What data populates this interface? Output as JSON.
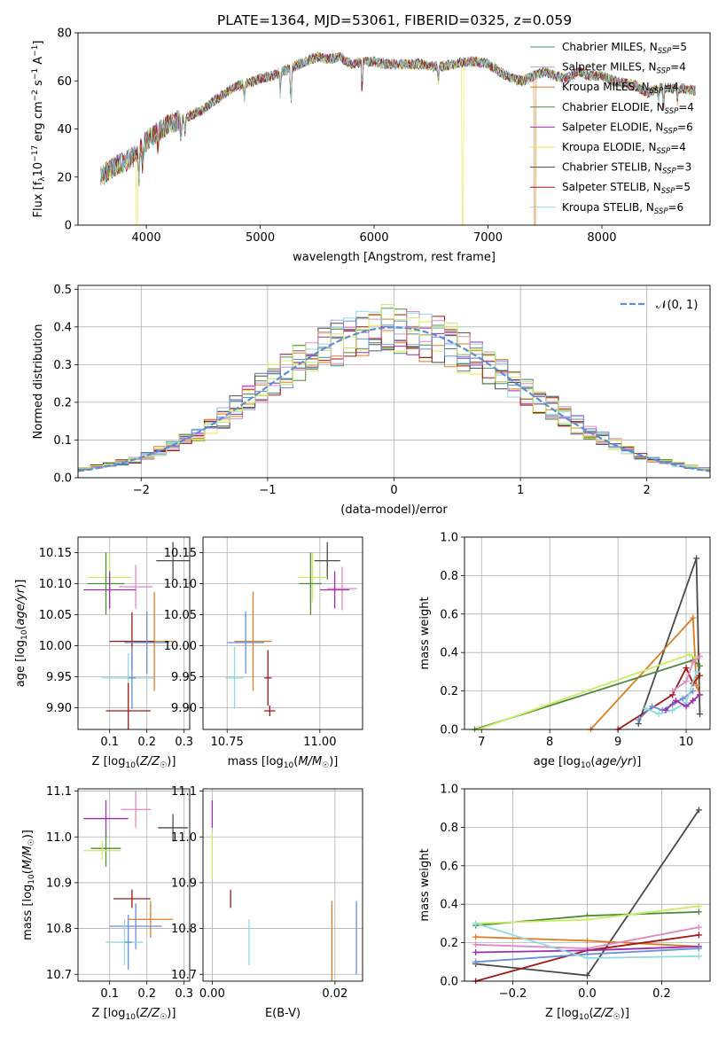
{
  "figure": {
    "title": "PLATE=1364, MJD=53061, FIBERID=0325, z=0.059"
  },
  "colors": {
    "chabrier_miles": "#4a8c7a",
    "salpeter_miles": "#b8a0d8",
    "kroupa_miles": "#e07b1f",
    "chabrier_elodie": "#4f8a3a",
    "salpeter_elodie": "#9b2fae",
    "kroupa_elodie": "#e8e64a",
    "chabrier_stelib": "#4a4a4a",
    "salpeter_stelib": "#a01818",
    "kroupa_stelib": "#8edce0",
    "model_c2": "#e088c0",
    "model_c3": "#6a8fd8",
    "model_c4": "#c8ee60",
    "normal_curve": "#5b8ed6"
  },
  "chart_data": [
    {
      "id": "spectrum",
      "type": "line",
      "title": "PLATE=1364, MJD=53061, FIBERID=0325, z=0.059",
      "xlabel": "wavelength [Angstrom, rest frame]",
      "ylabel": "Flux [f_λ10^-17 erg cm^-2 s^-1 A^-1]",
      "xlim": [
        3400,
        8950
      ],
      "ylim": [
        0,
        80
      ],
      "xticks": [
        4000,
        5000,
        6000,
        7000,
        8000
      ],
      "yticks": [
        0,
        20,
        40,
        60,
        80
      ],
      "legend": "top-right",
      "legend_entries": [
        {
          "name": "Chabrier MILES, N_SSP=5",
          "base": "Chabrier MILES, N",
          "sub": "SSP",
          "tail": "=5",
          "color": "#4a8c7a"
        },
        {
          "name": "Salpeter MILES, N_SSP=4",
          "base": "Salpeter MILES, N",
          "sub": "SSP",
          "tail": "=4",
          "color": "#b8a0d8"
        },
        {
          "name": "Kroupa MILES, N_SSP=4",
          "base": "Kroupa MILES, N",
          "sub": "SSP",
          "tail": "=4",
          "color": "#e07b1f"
        },
        {
          "name": "Chabrier ELODIE, N_SSP=4",
          "base": "Chabrier ELODIE, N",
          "sub": "SSP",
          "tail": "=4",
          "color": "#4f8a3a"
        },
        {
          "name": "Salpeter ELODIE, N_SSP=6",
          "base": "Salpeter ELODIE, N",
          "sub": "SSP",
          "tail": "=6",
          "color": "#9b2fae"
        },
        {
          "name": "Kroupa ELODIE, N_SSP=4",
          "base": "Kroupa ELODIE, N",
          "sub": "SSP",
          "tail": "=4",
          "color": "#e8e64a"
        },
        {
          "name": "Chabrier STELIB, N_SSP=3",
          "base": "Chabrier STELIB, N",
          "sub": "SSP",
          "tail": "=3",
          "color": "#4a4a4a"
        },
        {
          "name": "Salpeter STELIB, N_SSP=5",
          "base": "Salpeter STELIB, N",
          "sub": "SSP",
          "tail": "=5",
          "color": "#a01818"
        },
        {
          "name": "Kroupa STELIB, N_SSP=6",
          "base": "Kroupa STELIB, N",
          "sub": "SSP",
          "tail": "=6",
          "color": "#8edce0"
        }
      ],
      "continuum": {
        "x": [
          3600,
          3700,
          3800,
          3900,
          4000,
          4100,
          4200,
          4300,
          4400,
          4500,
          4600,
          4700,
          4800,
          4900,
          5000,
          5100,
          5200,
          5300,
          5400,
          5500,
          5600,
          5700,
          5800,
          5900,
          6000,
          6100,
          6200,
          6300,
          6400,
          6500,
          6600,
          6700,
          6800,
          6900,
          7000,
          7100,
          7200,
          7300,
          7400,
          7500,
          7600,
          7700,
          7800,
          7900,
          8000,
          8100,
          8200,
          8300,
          8400,
          8500,
          8600,
          8700,
          8800
        ],
        "y": [
          20,
          24,
          26,
          29,
          35,
          39,
          42,
          44,
          46,
          48,
          52,
          55,
          58,
          59,
          61,
          62,
          64,
          66,
          68,
          70,
          69,
          70,
          67,
          68,
          68,
          67,
          67,
          67,
          67,
          66,
          66,
          67,
          68,
          68,
          67,
          64,
          61,
          60,
          62,
          64,
          62,
          61,
          64,
          62,
          62,
          60,
          59,
          58,
          55,
          57,
          57,
          57,
          56
        ]
      },
      "absorption_lines": [
        {
          "x": 3934,
          "depth": 14
        },
        {
          "x": 3969,
          "depth": 10
        },
        {
          "x": 4102,
          "depth": 6
        },
        {
          "x": 4305,
          "depth": 9
        },
        {
          "x": 4340,
          "depth": 6
        },
        {
          "x": 4861,
          "depth": 7
        },
        {
          "x": 5176,
          "depth": 9
        },
        {
          "x": 5270,
          "depth": 16
        },
        {
          "x": 5895,
          "depth": 12
        },
        {
          "x": 6563,
          "depth": 6
        },
        {
          "x": 8498,
          "depth": 5
        },
        {
          "x": 8542,
          "depth": 7
        },
        {
          "x": 8662,
          "depth": 6
        }
      ],
      "dropouts": [
        {
          "x": 3920,
          "color": "#e8e64a"
        },
        {
          "x": 6780,
          "color": "#e8e64a"
        },
        {
          "x": 7410,
          "color": "#e07b1f"
        }
      ]
    },
    {
      "id": "residual_hist",
      "type": "histogram",
      "xlabel": "(data-model)/error",
      "ylabel": "Normed distribution",
      "xlim": [
        -2.5,
        2.5
      ],
      "ylim": [
        0,
        0.51
      ],
      "xticks": [
        -2,
        -1,
        0,
        1,
        2
      ],
      "yticks": [
        0.0,
        0.1,
        0.2,
        0.3,
        0.4,
        0.5
      ],
      "grid": true,
      "legend": "top-right",
      "normal_label": "𝒩(0, 1)",
      "bin_width": 0.1,
      "histogram_envelope": {
        "x": [
          -2.5,
          -2.0,
          -1.5,
          -1.0,
          -0.5,
          0.0,
          0.5,
          1.0,
          1.5,
          2.0,
          2.5
        ],
        "y": [
          0.02,
          0.05,
          0.12,
          0.25,
          0.35,
          0.4,
          0.35,
          0.24,
          0.13,
          0.05,
          0.02
        ]
      },
      "series_count": 12
    },
    {
      "id": "age_vs_Z",
      "type": "errorbar",
      "xlabel": "Z [log10(Z/Z☉)]",
      "ylabel": "age [log10(age/yr)]",
      "xlim": [
        0.015,
        0.315
      ],
      "ylim": [
        9.865,
        10.175
      ],
      "xticks": [
        0.1,
        0.2,
        0.3
      ],
      "yticks": [
        9.9,
        9.95,
        10.0,
        10.05,
        10.1,
        10.15
      ],
      "grid": true,
      "points": [
        {
          "x": 0.27,
          "y": 10.137,
          "xerr": 0.045,
          "yerr": 0.03,
          "color": "#4a4a4a"
        },
        {
          "x": 0.17,
          "y": 10.095,
          "xerr": 0.045,
          "yerr": 0.035,
          "color": "#e088c0"
        },
        {
          "x": 0.1,
          "y": 10.11,
          "xerr": 0.06,
          "yerr": 0.04,
          "color": "#c8ee60"
        },
        {
          "x": 0.09,
          "y": 10.1,
          "xerr": 0.05,
          "yerr": 0.05,
          "color": "#4f8a3a"
        },
        {
          "x": 0.1,
          "y": 10.09,
          "xerr": 0.07,
          "yerr": 0.03,
          "color": "#9b2fae"
        },
        {
          "x": 0.22,
          "y": 10.007,
          "xerr": 0.05,
          "yerr": 0.08,
          "color": "#e07b1f"
        },
        {
          "x": 0.16,
          "y": 10.007,
          "xerr": 0.06,
          "yerr": 0.047,
          "color": "#a01818"
        },
        {
          "x": 0.2,
          "y": 10.005,
          "xerr": 0.06,
          "yerr": 0.05,
          "color": "#6a8fd8"
        },
        {
          "x": 0.15,
          "y": 9.948,
          "xerr": 0.07,
          "yerr": 0.04,
          "color": "#8edce0"
        },
        {
          "x": 0.15,
          "y": 9.895,
          "xerr": 0.06,
          "yerr": 0.045,
          "color": "#a01818"
        },
        {
          "x": 0.16,
          "y": 9.948,
          "xerr": 0.01,
          "yerr": 0.05,
          "color": "#6a8fd8"
        }
      ]
    },
    {
      "id": "age_vs_mass",
      "type": "errorbar",
      "xlabel": "mass [log10(M/M☉)]",
      "xlim": [
        10.685,
        11.115
      ],
      "ylim": [
        9.865,
        10.175
      ],
      "xticks": [
        10.75,
        11.0
      ],
      "yticks": [
        9.9,
        9.95,
        10.0,
        10.05,
        10.1,
        10.15
      ],
      "grid": true,
      "points": [
        {
          "x": 11.02,
          "y": 10.137,
          "xerr": 0.035,
          "yerr": 0.03,
          "color": "#4a4a4a"
        },
        {
          "x": 11.06,
          "y": 10.092,
          "xerr": 0.04,
          "yerr": 0.035,
          "color": "#e088c0"
        },
        {
          "x": 10.98,
          "y": 10.11,
          "xerr": 0.04,
          "yerr": 0.04,
          "color": "#c8ee60"
        },
        {
          "x": 10.975,
          "y": 10.1,
          "xerr": 0.03,
          "yerr": 0.05,
          "color": "#4f8a3a"
        },
        {
          "x": 11.04,
          "y": 10.09,
          "xerr": 0.04,
          "yerr": 0.03,
          "color": "#9b2fae"
        },
        {
          "x": 10.82,
          "y": 10.007,
          "xerr": 0.05,
          "yerr": 0.08,
          "color": "#e07b1f"
        },
        {
          "x": 10.8,
          "y": 10.005,
          "xerr": 0.05,
          "yerr": 0.05,
          "color": "#6a8fd8"
        },
        {
          "x": 10.86,
          "y": 9.948,
          "xerr": 0.01,
          "yerr": 0.045,
          "color": "#a01818"
        },
        {
          "x": 10.77,
          "y": 9.948,
          "xerr": 0.025,
          "yerr": 0.05,
          "color": "#8edce0"
        },
        {
          "x": 10.865,
          "y": 9.895,
          "xerr": 0.015,
          "yerr": 0.0,
          "color": "#a01818"
        }
      ]
    },
    {
      "id": "weight_vs_age",
      "type": "line",
      "xlabel": "age [log10(age/yr)]",
      "ylabel": "mass weight",
      "xlim": [
        6.75,
        10.35
      ],
      "ylim": [
        0,
        1.0
      ],
      "xticks": [
        7,
        8,
        9,
        10
      ],
      "yticks": [
        0.0,
        0.2,
        0.4,
        0.6,
        0.8,
        1.0
      ],
      "grid": true,
      "series": [
        {
          "color": "#4a4a4a",
          "x": [
            9.3,
            10.15,
            10.2
          ],
          "y": [
            0.03,
            0.89,
            0.08
          ]
        },
        {
          "color": "#e07b1f",
          "x": [
            8.6,
            10.1,
            10.15,
            10.2
          ],
          "y": [
            0.0,
            0.58,
            0.23,
            0.18
          ]
        },
        {
          "color": "#a01818",
          "x": [
            9.0,
            9.8,
            10.0,
            10.1,
            10.2
          ],
          "y": [
            0.0,
            0.18,
            0.32,
            0.24,
            0.28
          ]
        },
        {
          "color": "#4f8a3a",
          "x": [
            6.9,
            10.1,
            10.2
          ],
          "y": [
            0.0,
            0.36,
            0.33
          ]
        },
        {
          "color": "#c8ee60",
          "x": [
            6.95,
            10.05,
            10.15
          ],
          "y": [
            0.0,
            0.39,
            0.37
          ]
        },
        {
          "color": "#6a8fd8",
          "x": [
            9.3,
            9.5,
            9.65,
            9.8,
            9.95,
            10.1
          ],
          "y": [
            0.05,
            0.12,
            0.1,
            0.13,
            0.16,
            0.2
          ]
        },
        {
          "color": "#8edce0",
          "x": [
            9.4,
            9.6,
            9.8,
            10.0,
            10.15
          ],
          "y": [
            0.11,
            0.08,
            0.1,
            0.14,
            0.3
          ]
        },
        {
          "color": "#9b2fae",
          "x": [
            9.7,
            9.85,
            10.0,
            10.1,
            10.2
          ],
          "y": [
            0.1,
            0.15,
            0.12,
            0.15,
            0.18
          ]
        },
        {
          "color": "#e088c0",
          "x": [
            9.8,
            10.0,
            10.1,
            10.2
          ],
          "y": [
            0.2,
            0.25,
            0.35,
            0.38
          ]
        }
      ]
    },
    {
      "id": "mass_vs_Z",
      "type": "errorbar",
      "xlabel": "Z [log10(Z/Z☉)]",
      "ylabel": "mass [log10(M/M☉)]",
      "xlim": [
        0.015,
        0.315
      ],
      "ylim": [
        10.685,
        11.105
      ],
      "xticks": [
        0.1,
        0.2,
        0.3
      ],
      "yticks": [
        10.7,
        10.8,
        10.9,
        11.0,
        11.1
      ],
      "grid": true,
      "points": [
        {
          "x": 0.27,
          "y": 11.02,
          "xerr": 0.04,
          "yerr": 0.03,
          "color": "#4a4a4a"
        },
        {
          "x": 0.17,
          "y": 11.06,
          "xerr": 0.04,
          "yerr": 0.04,
          "color": "#e088c0"
        },
        {
          "x": 0.09,
          "y": 11.04,
          "xerr": 0.06,
          "yerr": 0.04,
          "color": "#9b2fae"
        },
        {
          "x": 0.09,
          "y": 10.975,
          "xerr": 0.04,
          "yerr": 0.04,
          "color": "#4f8a3a"
        },
        {
          "x": 0.08,
          "y": 10.97,
          "xerr": 0.05,
          "yerr": 0.02,
          "color": "#c8ee60"
        },
        {
          "x": 0.16,
          "y": 10.865,
          "xerr": 0.05,
          "yerr": 0.02,
          "color": "#a01818"
        },
        {
          "x": 0.21,
          "y": 10.82,
          "xerr": 0.06,
          "yerr": 0.04,
          "color": "#e07b1f"
        },
        {
          "x": 0.17,
          "y": 10.805,
          "xerr": 0.07,
          "yerr": 0.05,
          "color": "#6a8fd8"
        },
        {
          "x": 0.14,
          "y": 10.77,
          "xerr": 0.05,
          "yerr": 0.05,
          "color": "#8edce0"
        },
        {
          "x": 0.15,
          "y": 10.77,
          "xerr": 0.01,
          "yerr": 0.06,
          "color": "#6a8fd8"
        }
      ]
    },
    {
      "id": "mass_vs_EBV",
      "type": "errorbar",
      "xlabel": "E(B-V)",
      "xlim": [
        -0.0015,
        0.0245
      ],
      "ylim": [
        10.685,
        11.105
      ],
      "xticks": [
        0.0,
        0.02
      ],
      "yticks": [
        10.7,
        10.8,
        10.9,
        11.0,
        11.1
      ],
      "grid": true,
      "points": [
        {
          "x": 0.0,
          "y": 11.05,
          "xerr": 0,
          "yerr": 0.03,
          "color": "#9b2fae"
        },
        {
          "x": 0.0,
          "y": 10.96,
          "xerr": 0,
          "yerr": 0.05,
          "color": "#c8ee60"
        },
        {
          "x": 0.003,
          "y": 10.865,
          "xerr": 0,
          "yerr": 0.02,
          "color": "#a01818"
        },
        {
          "x": 0.006,
          "y": 10.77,
          "xerr": 0,
          "yerr": 0.05,
          "color": "#8edce0"
        },
        {
          "x": 0.0195,
          "y": 10.76,
          "xerr": 0,
          "yerr": 0.1,
          "color": "#e07b1f"
        },
        {
          "x": 0.0235,
          "y": 10.78,
          "xerr": 0,
          "yerr": 0.08,
          "color": "#6a8fd8"
        }
      ]
    },
    {
      "id": "weight_vs_Z",
      "type": "line",
      "xlabel": "Z [log10(Z/Z☉)]",
      "ylabel": "mass weight",
      "xlim": [
        -0.33,
        0.33
      ],
      "ylim": [
        0,
        1.0
      ],
      "xticks": [
        -0.2,
        0.0,
        0.2
      ],
      "yticks": [
        0.0,
        0.2,
        0.4,
        0.6,
        0.8,
        1.0
      ],
      "grid": true,
      "series": [
        {
          "color": "#4a4a4a",
          "x": [
            -0.3,
            0.0,
            0.3
          ],
          "y": [
            0.09,
            0.03,
            0.89
          ]
        },
        {
          "color": "#4f8a3a",
          "x": [
            -0.3,
            0.0,
            0.3
          ],
          "y": [
            0.29,
            0.34,
            0.36
          ]
        },
        {
          "color": "#c8ee60",
          "x": [
            -0.3,
            0.0,
            0.3
          ],
          "y": [
            0.3,
            0.32,
            0.39
          ]
        },
        {
          "color": "#e07b1f",
          "x": [
            -0.3,
            0.0,
            0.3
          ],
          "y": [
            0.23,
            0.21,
            0.18
          ]
        },
        {
          "color": "#a01818",
          "x": [
            -0.3,
            0.0,
            0.3
          ],
          "y": [
            0.0,
            0.16,
            0.24
          ]
        },
        {
          "color": "#e088c0",
          "x": [
            -0.3,
            0.0,
            0.3
          ],
          "y": [
            0.19,
            0.17,
            0.28
          ]
        },
        {
          "color": "#9b2fae",
          "x": [
            -0.3,
            0.0,
            0.3
          ],
          "y": [
            0.15,
            0.16,
            0.18
          ]
        },
        {
          "color": "#6a8fd8",
          "x": [
            -0.3,
            0.0,
            0.3
          ],
          "y": [
            0.1,
            0.14,
            0.17
          ]
        },
        {
          "color": "#8edce0",
          "x": [
            -0.3,
            0.0,
            0.3
          ],
          "y": [
            0.3,
            0.12,
            0.13
          ]
        }
      ]
    }
  ]
}
